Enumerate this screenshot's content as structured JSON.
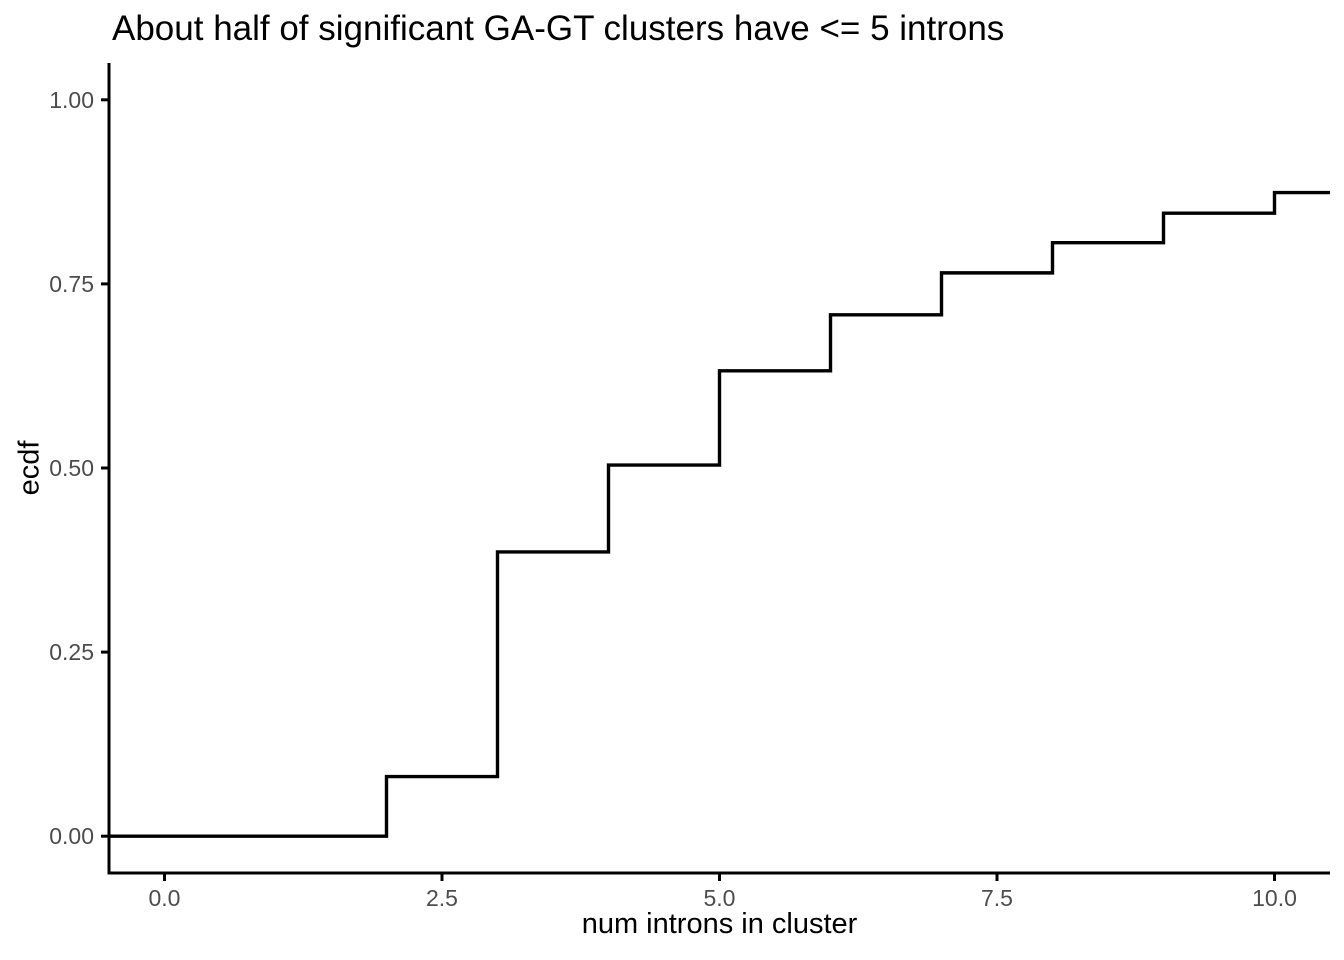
{
  "chart_data": {
    "type": "line",
    "subtype": "ecdf-step",
    "title": "About half of significant GA-GT clusters have <= 5 introns",
    "xlabel": "num introns in cluster",
    "ylabel": "ecdf",
    "x_ticks": [
      "0.0",
      "2.5",
      "5.0",
      "7.5",
      "10.0"
    ],
    "x_tick_values": [
      0,
      2.5,
      5,
      7.5,
      10
    ],
    "y_ticks": [
      "0.00",
      "0.25",
      "0.50",
      "0.75",
      "1.00"
    ],
    "y_tick_values": [
      0,
      0.25,
      0.5,
      0.75,
      1
    ],
    "xlim": [
      -0.5,
      10.5
    ],
    "ylim": [
      -0.05,
      1.05
    ],
    "grid": false,
    "legend": false,
    "start_value": 0,
    "steps": [
      {
        "x": 2,
        "ecdf": 0.081
      },
      {
        "x": 3,
        "ecdf": 0.386
      },
      {
        "x": 4,
        "ecdf": 0.504
      },
      {
        "x": 5,
        "ecdf": 0.632
      },
      {
        "x": 6,
        "ecdf": 0.708
      },
      {
        "x": 7,
        "ecdf": 0.765
      },
      {
        "x": 8,
        "ecdf": 0.806
      },
      {
        "x": 9,
        "ecdf": 0.846
      },
      {
        "x": 10,
        "ecdf": 0.874
      }
    ],
    "colors": {
      "line": "#000000",
      "axis": "#000000",
      "tick_label": "#4d4d4d",
      "title": "#000000",
      "background": "#ffffff"
    }
  }
}
